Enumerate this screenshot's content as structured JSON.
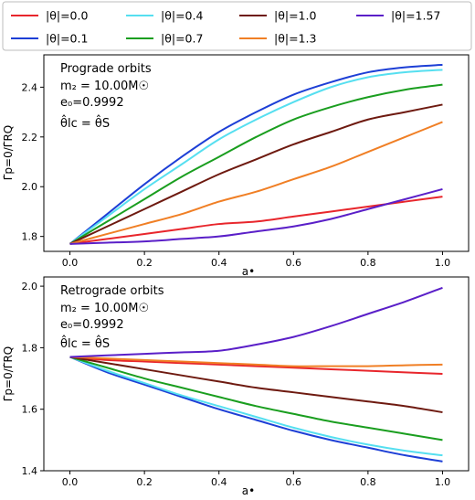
{
  "legend": [
    {
      "label": "|θ|=0.0",
      "color": "#e8262c"
    },
    {
      "label": "|θ|=0.1",
      "color": "#1d3fd6"
    },
    {
      "label": "|θ|=0.4",
      "color": "#56dff0"
    },
    {
      "label": "|θ|=0.7",
      "color": "#1a9e1f"
    },
    {
      "label": "|θ|=1.0",
      "color": "#6e1a10"
    },
    {
      "label": "|θ|=1.3",
      "color": "#f07f25"
    },
    {
      "label": "|θ|=1.57",
      "color": "#5a1fc8"
    }
  ],
  "chart_data": [
    {
      "type": "line",
      "annotations": [
        "Prograde orbits",
        "m₂ = 10.00M☉",
        "e₀=0.9992",
        "θ̂lc = θ̂S"
      ],
      "xlabel": "a•",
      "ylabel": "Γ̇p=0/Γ̇RQ",
      "xlim": [
        -0.07,
        1.07
      ],
      "ylim": [
        1.74,
        2.53
      ],
      "xticks": [
        "0.0",
        "0.2",
        "0.4",
        "0.6",
        "0.8",
        "1.0"
      ],
      "yticks": [
        "1.8",
        "2.0",
        "2.2",
        "2.4"
      ],
      "grid": false,
      "x": [
        0.0,
        0.1,
        0.2,
        0.3,
        0.4,
        0.5,
        0.6,
        0.7,
        0.8,
        0.9,
        1.0
      ],
      "series": [
        {
          "name": "|θ|=0.0",
          "values": [
            1.77,
            1.79,
            1.81,
            1.83,
            1.85,
            1.86,
            1.88,
            1.9,
            1.92,
            1.94,
            1.96
          ]
        },
        {
          "name": "|θ|=0.1",
          "values": [
            1.77,
            1.89,
            2.01,
            2.12,
            2.22,
            2.3,
            2.37,
            2.42,
            2.46,
            2.48,
            2.49
          ]
        },
        {
          "name": "|θ|=0.4",
          "values": [
            1.77,
            1.88,
            1.99,
            2.09,
            2.19,
            2.27,
            2.34,
            2.4,
            2.44,
            2.46,
            2.47
          ]
        },
        {
          "name": "|θ|=0.7",
          "values": [
            1.77,
            1.86,
            1.95,
            2.04,
            2.12,
            2.2,
            2.27,
            2.32,
            2.36,
            2.39,
            2.41
          ]
        },
        {
          "name": "|θ|=1.0",
          "values": [
            1.77,
            1.84,
            1.91,
            1.98,
            2.05,
            2.11,
            2.17,
            2.22,
            2.27,
            2.3,
            2.33
          ]
        },
        {
          "name": "|θ|=1.3",
          "values": [
            1.77,
            1.81,
            1.85,
            1.89,
            1.94,
            1.98,
            2.03,
            2.08,
            2.14,
            2.2,
            2.26
          ]
        },
        {
          "name": "|θ|=1.57",
          "values": [
            1.77,
            1.775,
            1.78,
            1.79,
            1.8,
            1.82,
            1.84,
            1.87,
            1.91,
            1.95,
            1.99
          ]
        }
      ]
    },
    {
      "type": "line",
      "annotations": [
        "Retrograde orbits",
        "m₂ = 10.00M☉",
        "e₀=0.9992",
        "θ̂lc = θ̂S"
      ],
      "xlabel": "a•",
      "ylabel": "Γ̇p=0/Γ̇RQ",
      "xlim": [
        -0.07,
        1.07
      ],
      "ylim": [
        1.4,
        2.03
      ],
      "xticks": [
        "0.0",
        "0.2",
        "0.4",
        "0.6",
        "0.8",
        "1.0"
      ],
      "yticks": [
        "1.4",
        "1.6",
        "1.8",
        "2.0"
      ],
      "grid": false,
      "x": [
        0.0,
        0.1,
        0.2,
        0.3,
        0.4,
        0.5,
        0.6,
        0.7,
        0.8,
        0.9,
        1.0
      ],
      "series": [
        {
          "name": "|θ|=0.0",
          "values": [
            1.77,
            1.76,
            1.755,
            1.75,
            1.745,
            1.74,
            1.735,
            1.73,
            1.725,
            1.72,
            1.715
          ]
        },
        {
          "name": "|θ|=0.1",
          "values": [
            1.77,
            1.72,
            1.68,
            1.64,
            1.6,
            1.565,
            1.53,
            1.5,
            1.475,
            1.45,
            1.43
          ]
        },
        {
          "name": "|θ|=0.4",
          "values": [
            1.77,
            1.725,
            1.685,
            1.645,
            1.61,
            1.575,
            1.54,
            1.51,
            1.485,
            1.465,
            1.45
          ]
        },
        {
          "name": "|θ|=0.7",
          "values": [
            1.77,
            1.735,
            1.7,
            1.67,
            1.64,
            1.61,
            1.585,
            1.56,
            1.54,
            1.52,
            1.5
          ]
        },
        {
          "name": "|θ|=1.0",
          "values": [
            1.77,
            1.75,
            1.73,
            1.71,
            1.69,
            1.67,
            1.655,
            1.64,
            1.625,
            1.61,
            1.59
          ]
        },
        {
          "name": "|θ|=1.3",
          "values": [
            1.77,
            1.765,
            1.76,
            1.755,
            1.75,
            1.745,
            1.74,
            1.74,
            1.74,
            1.743,
            1.745
          ]
        },
        {
          "name": "|θ|=1.57",
          "values": [
            1.77,
            1.775,
            1.78,
            1.785,
            1.79,
            1.81,
            1.835,
            1.87,
            1.91,
            1.95,
            1.995
          ]
        }
      ]
    }
  ]
}
